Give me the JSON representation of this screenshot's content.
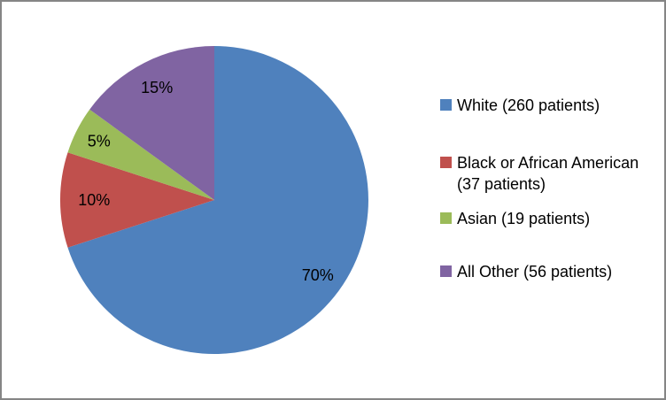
{
  "chart_data": {
    "type": "pie",
    "title": "",
    "direction": "clockwise",
    "start_angle_deg": 0,
    "legend_position": "right",
    "background_color": "#FFFFFF",
    "frame_border_color": "#858585",
    "slices": [
      {
        "id": "white",
        "legend_label": "White (260 patients)",
        "value_pct": 70,
        "patients": 260,
        "pct_label": "70%",
        "color": "#4F81BD"
      },
      {
        "id": "black-or-african-american",
        "legend_label": "Black or African American (37 patients)",
        "value_pct": 10,
        "patients": 37,
        "pct_label": "10%",
        "color": "#C0504D"
      },
      {
        "id": "asian",
        "legend_label": "Asian (19 patients)",
        "value_pct": 5,
        "patients": 19,
        "pct_label": "5%",
        "color": "#9BBB59"
      },
      {
        "id": "all-other",
        "legend_label": "All Other (56 patients)",
        "value_pct": 15,
        "patients": 56,
        "pct_label": "15%",
        "color": "#8064A2"
      }
    ]
  }
}
